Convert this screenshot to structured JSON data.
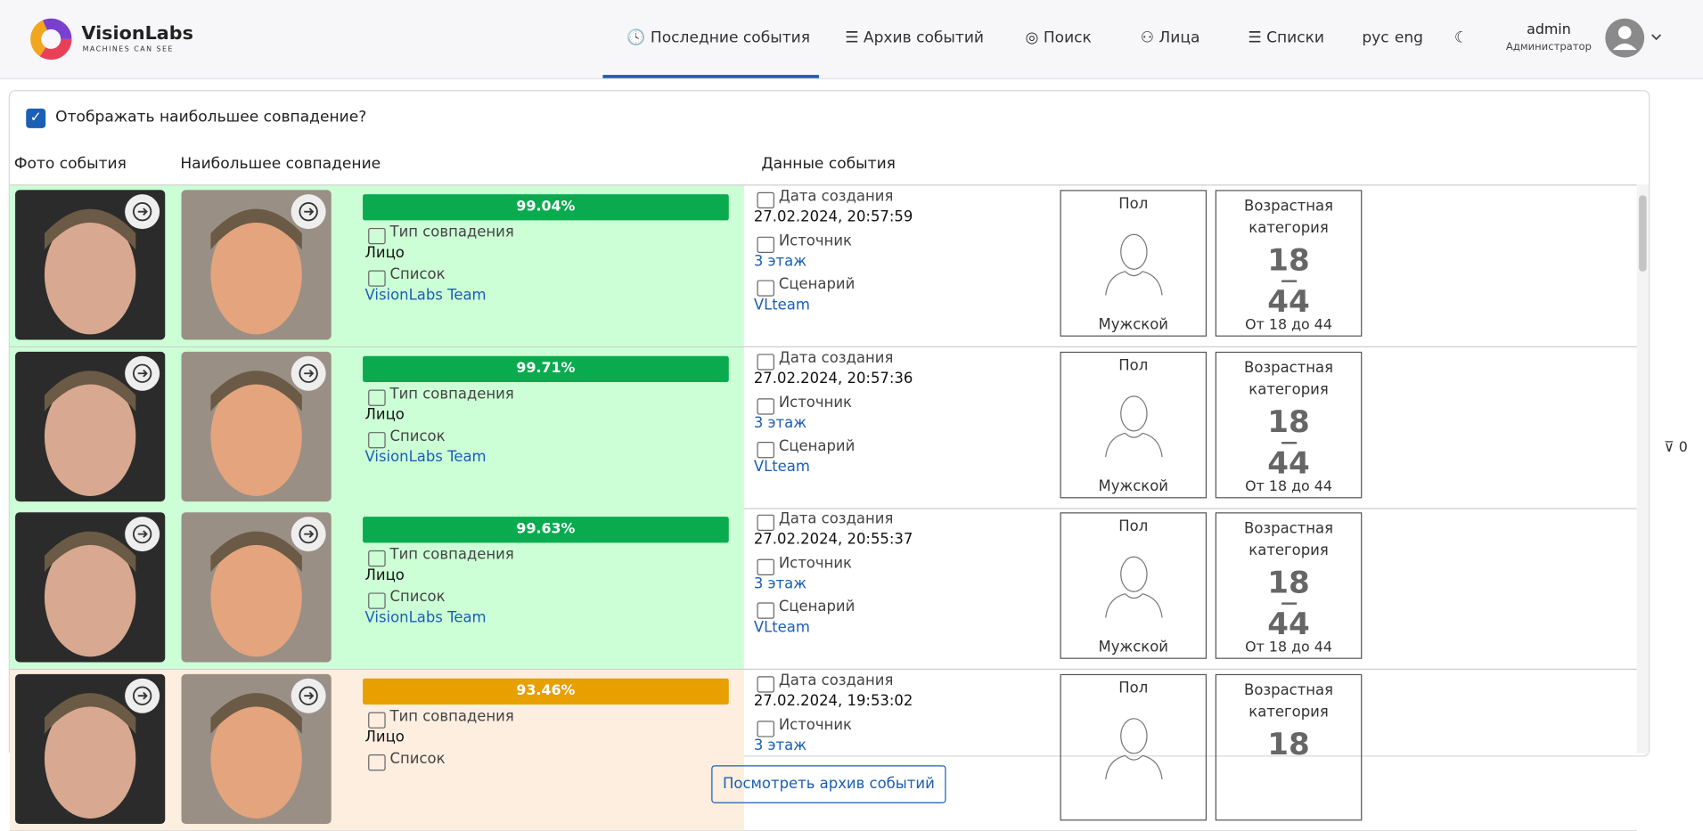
{
  "header": {
    "logo_title": "VisionLabs",
    "logo_subtitle": "MACHINES CAN SEE",
    "nav": [
      "Последние события",
      "Архив событий",
      "Поиск",
      "Лица",
      "Списки"
    ],
    "languages": [
      "рус",
      "eng"
    ],
    "user_name": "admin",
    "user_role": "Администратор"
  },
  "options": {
    "show_best_match": "Отображать наибольшее совпадение?"
  },
  "table": {
    "columns": [
      "Фото события",
      "Наибольшее совпадение",
      "Данные события"
    ],
    "rows": [
      {
        "score": "99.04%",
        "bar_color": "#0aab4f",
        "bg_color": "#ccffd6",
        "match_type_label": "Тип совпадения",
        "match_type": "Лицо",
        "list_label": "Список",
        "list": "VisionLabs Team",
        "date_label": "Дата создания",
        "date": "27.02.2024, 20:57:59",
        "source_label": "Источник",
        "source": "3 этаж",
        "scenario_label": "Сценарий",
        "scenario": "VLteam",
        "gender_label": "Пол",
        "gender": "Мужской",
        "age_label": "Возрастная категория",
        "age_min": "18",
        "age_max": "44",
        "age_range": "От 18 до 44"
      },
      {
        "score": "99.71%",
        "bar_color": "#0aab4f",
        "bg_color": "#ccffd6",
        "match_type_label": "Тип совпадения",
        "match_type": "Лицо",
        "list_label": "Список",
        "list": "VisionLabs Team",
        "date_label": "Дата создания",
        "date": "27.02.2024, 20:57:36",
        "source_label": "Источник",
        "source": "3 этаж",
        "scenario_label": "Сценарий",
        "scenario": "VLteam",
        "gender_label": "Пол",
        "gender": "Мужской",
        "age_label": "Возрастная категория",
        "age_min": "18",
        "age_max": "44",
        "age_range": "От 18 до 44"
      },
      {
        "score": "99.63%",
        "bar_color": "#0aab4f",
        "bg_color": "#ccffd6",
        "match_type_label": "Тип совпадения",
        "match_type": "Лицо",
        "list_label": "Список",
        "list": "VisionLabs Team",
        "date_label": "Дата создания",
        "date": "27.02.2024, 20:55:37",
        "source_label": "Источник",
        "source": "3 этаж",
        "scenario_label": "Сценарий",
        "scenario": "VLteam",
        "gender_label": "Пол",
        "gender": "Мужской",
        "age_label": "Возрастная категория",
        "age_min": "18",
        "age_max": "44",
        "age_range": "От 18 до 44"
      },
      {
        "score": "93.46%",
        "bar_color": "#e89f00",
        "bg_color": "#fdeee0",
        "match_type_label": "Тип совпадения",
        "match_type": "Лицо",
        "list_label": "Список",
        "date_label": "Дата создания",
        "date": "27.02.2024, 19:53:02",
        "source_label": "Источник",
        "source": "3 этаж",
        "gender_label": "Пол",
        "age_label": "Возрастная категория",
        "age_min": "18"
      }
    ]
  },
  "filter_count": 0,
  "footer_button": "Посмотреть архив событий"
}
